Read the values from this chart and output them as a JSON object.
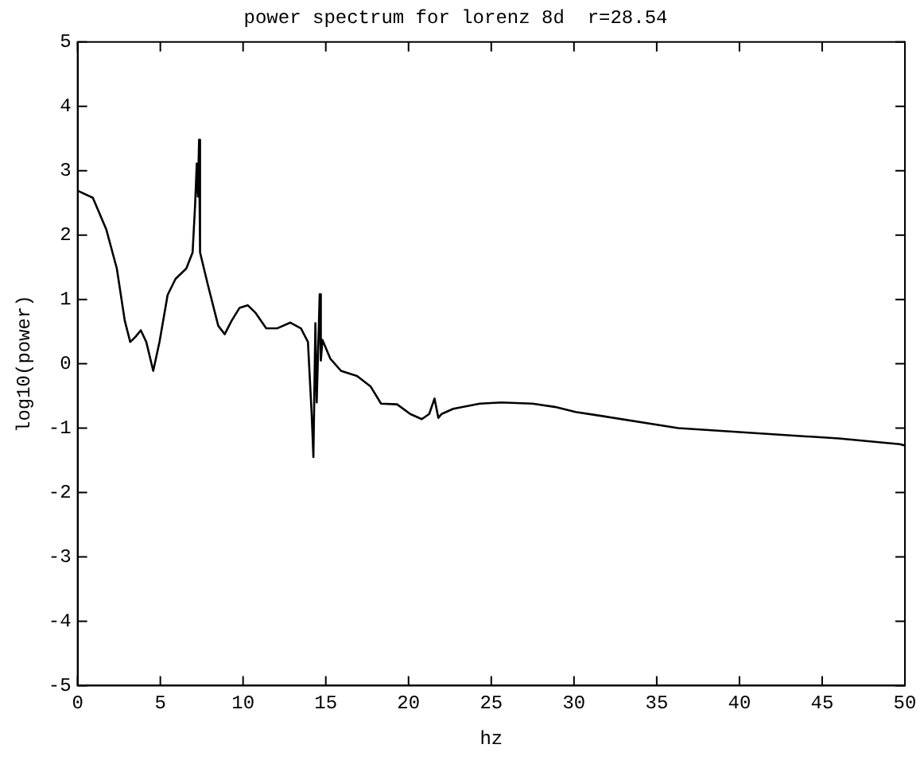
{
  "chart_data": {
    "type": "line",
    "title": "power spectrum for lorenz 8d  r=28.54",
    "xlabel": "hz",
    "ylabel": "log10(power)",
    "xlim": [
      0,
      50
    ],
    "ylim": [
      -5,
      5
    ],
    "xticks": [
      0,
      5,
      10,
      15,
      20,
      25,
      30,
      35,
      40,
      45,
      50
    ],
    "yticks": [
      -5,
      -4,
      -3,
      -2,
      -1,
      0,
      1,
      2,
      3,
      4,
      5
    ],
    "grid": false,
    "legend": false,
    "marker": "none",
    "line_style": "solid",
    "series": [
      {
        "color": "#000000",
        "x": [
          0,
          0.92,
          1.73,
          2.37,
          2.85,
          3.18,
          3.5,
          3.82,
          4.15,
          4.57,
          4.95,
          5.44,
          5.92,
          6.57,
          6.95,
          7.1,
          7.2,
          7.27,
          7.34,
          7.4,
          7.86,
          8.5,
          8.89,
          9.31,
          9.79,
          10.28,
          10.76,
          11.4,
          12.05,
          12.86,
          13.5,
          13.92,
          14.15,
          14.25,
          14.37,
          14.45,
          14.63,
          14.7,
          14.8,
          15.27,
          15.92,
          16.89,
          17.7,
          18.34,
          19.31,
          20.1,
          20.8,
          21.25,
          21.57,
          21.8,
          22.0,
          22.7,
          24.3,
          25.6,
          27.5,
          28.84,
          30.1,
          31.4,
          36.3,
          41.1,
          46.0,
          49.7,
          50
        ],
        "values": [
          2.69,
          2.58,
          2.09,
          1.48,
          0.67,
          0.34,
          0.42,
          0.52,
          0.34,
          -0.11,
          0.34,
          1.07,
          1.32,
          1.48,
          1.73,
          2.46,
          3.11,
          2.6,
          3.48,
          1.73,
          1.24,
          0.59,
          0.46,
          0.67,
          0.87,
          0.91,
          0.79,
          0.55,
          0.55,
          0.64,
          0.55,
          0.34,
          -0.8,
          -1.45,
          0.63,
          -0.6,
          1.08,
          0.05,
          0.37,
          0.08,
          -0.11,
          -0.19,
          -0.35,
          -0.62,
          -0.63,
          -0.78,
          -0.86,
          -0.78,
          -0.54,
          -0.84,
          -0.78,
          -0.7,
          -0.62,
          -0.6,
          -0.62,
          -0.67,
          -0.75,
          -0.8,
          -1.0,
          -1.08,
          -1.16,
          -1.25,
          -1.27
        ]
      }
    ]
  }
}
